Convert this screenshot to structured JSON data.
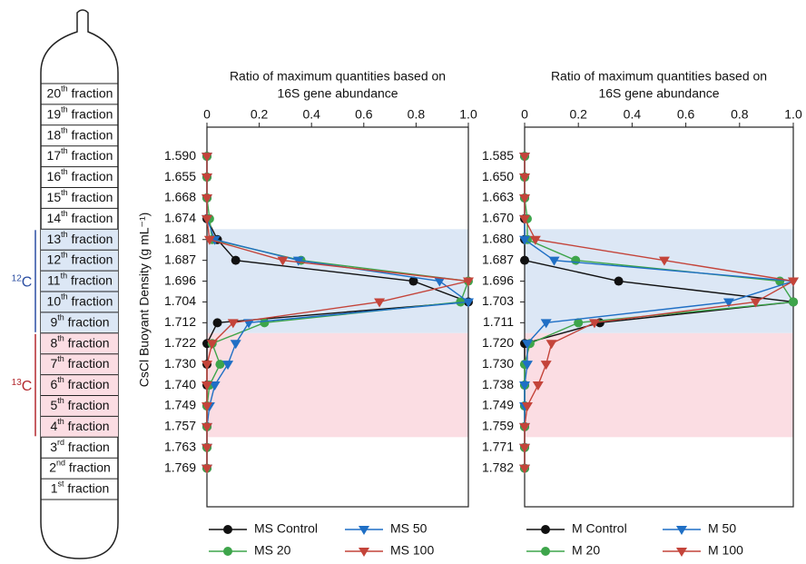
{
  "tube": {
    "fractions": [
      {
        "n": "20",
        "suffix": "th",
        "word": "fraction"
      },
      {
        "n": "19",
        "suffix": "th",
        "word": "fraction"
      },
      {
        "n": "18",
        "suffix": "th",
        "word": "fraction"
      },
      {
        "n": "17",
        "suffix": "th",
        "word": "fraction"
      },
      {
        "n": "16",
        "suffix": "th",
        "word": "fraction"
      },
      {
        "n": "15",
        "suffix": "th",
        "word": "fraction"
      },
      {
        "n": "14",
        "suffix": "th",
        "word": "fraction"
      },
      {
        "n": "13",
        "suffix": "th",
        "word": "fraction"
      },
      {
        "n": "12",
        "suffix": "th",
        "word": "fraction"
      },
      {
        "n": "11",
        "suffix": "th",
        "word": "fraction"
      },
      {
        "n": "10",
        "suffix": "th",
        "word": "fraction"
      },
      {
        "n": "9",
        "suffix": "th",
        "word": "fraction"
      },
      {
        "n": "8",
        "suffix": "th",
        "word": "fraction"
      },
      {
        "n": "7",
        "suffix": "th",
        "word": "fraction"
      },
      {
        "n": "6",
        "suffix": "th",
        "word": "fraction"
      },
      {
        "n": "5",
        "suffix": "th",
        "word": "fraction"
      },
      {
        "n": "4",
        "suffix": "th",
        "word": "fraction"
      },
      {
        "n": "3",
        "suffix": "rd",
        "word": "fraction"
      },
      {
        "n": "2",
        "suffix": "nd",
        "word": "fraction"
      },
      {
        "n": "1",
        "suffix": "st",
        "word": "fraction"
      }
    ],
    "groups": [
      {
        "mass": "12",
        "element": "C",
        "color": "#2b4ea2"
      },
      {
        "mass": "13",
        "element": "C",
        "color": "#b3282d"
      }
    ]
  },
  "chart_data": [
    {
      "type": "line",
      "title": [
        "Ratio of maximum quantities based on",
        "16S gene abundance"
      ],
      "ylabel": "CsCl Buoyant Density (g mL⁻¹)",
      "categories": [
        "1.590",
        "1.655",
        "1.668",
        "1.674",
        "1.681",
        "1.687",
        "1.696",
        "1.704",
        "1.712",
        "1.722",
        "1.730",
        "1.740",
        "1.749",
        "1.757",
        "1.763",
        "1.769"
      ],
      "xlim": [
        0,
        1
      ],
      "xticks": [
        0,
        0.2,
        0.4,
        0.6,
        0.8,
        {
          "value": 1,
          "label": "1.0"
        }
      ],
      "series": [
        {
          "name": "MS Control",
          "color": "#111111",
          "marker": "circle",
          "values": [
            0,
            0,
            0,
            0,
            0.04,
            0.11,
            0.79,
            1,
            0.04,
            0,
            0,
            0,
            0,
            0,
            0,
            0
          ]
        },
        {
          "name": "MS 20",
          "color": "#3ea54b",
          "marker": "circle",
          "values": [
            0,
            0,
            0,
            0.01,
            0.02,
            0.36,
            1,
            0.97,
            0.22,
            0.02,
            0.05,
            0.01,
            0,
            0,
            0,
            0
          ]
        },
        {
          "name": "MS 50",
          "color": "#1f6fc5",
          "marker": "triangle-down",
          "values": [
            0,
            0,
            0,
            0,
            0.03,
            0.35,
            0.89,
            1,
            0.16,
            0.11,
            0.08,
            0.03,
            0.01,
            0,
            0,
            0
          ]
        },
        {
          "name": "MS 100",
          "color": "#c4443a",
          "marker": "triangle-down",
          "values": [
            0,
            0,
            0,
            0,
            0.01,
            0.29,
            1,
            0.66,
            0.1,
            0.02,
            0,
            0,
            0,
            0,
            0,
            0
          ]
        }
      ]
    },
    {
      "type": "line",
      "title": [
        "Ratio of maximum quantities based on",
        "16S gene abundance"
      ],
      "categories": [
        "1.585",
        "1.650",
        "1.663",
        "1.670",
        "1.680",
        "1.687",
        "1.696",
        "1.703",
        "1.711",
        "1.720",
        "1.730",
        "1.738",
        "1.749",
        "1.759",
        "1.771",
        "1.782"
      ],
      "xlim": [
        0,
        1
      ],
      "xticks": [
        0,
        0.2,
        0.4,
        0.6,
        0.8,
        {
          "value": 1,
          "label": "1.0"
        }
      ],
      "series": [
        {
          "name": "M Control",
          "color": "#111111",
          "marker": "circle",
          "values": [
            0,
            0,
            0,
            0,
            0,
            0,
            0.35,
            1,
            0.28,
            0,
            0,
            0,
            0,
            0,
            0,
            0
          ]
        },
        {
          "name": "M 20",
          "color": "#3ea54b",
          "marker": "circle",
          "values": [
            0,
            0,
            0,
            0.01,
            0.01,
            0.19,
            0.95,
            1,
            0.2,
            0.02,
            0,
            0,
            0,
            0,
            0,
            0
          ]
        },
        {
          "name": "M 50",
          "color": "#1f6fc5",
          "marker": "triangle-down",
          "values": [
            0,
            0,
            0,
            0,
            0,
            0.11,
            1,
            0.76,
            0.08,
            0.01,
            0.01,
            0,
            0,
            0,
            0,
            0
          ]
        },
        {
          "name": "M 100",
          "color": "#c4443a",
          "marker": "triangle-down",
          "values": [
            0,
            0,
            0,
            0,
            0.04,
            0.52,
            1,
            0.86,
            0.26,
            0.1,
            0.08,
            0.05,
            0.01,
            0,
            0,
            0
          ]
        }
      ]
    }
  ]
}
